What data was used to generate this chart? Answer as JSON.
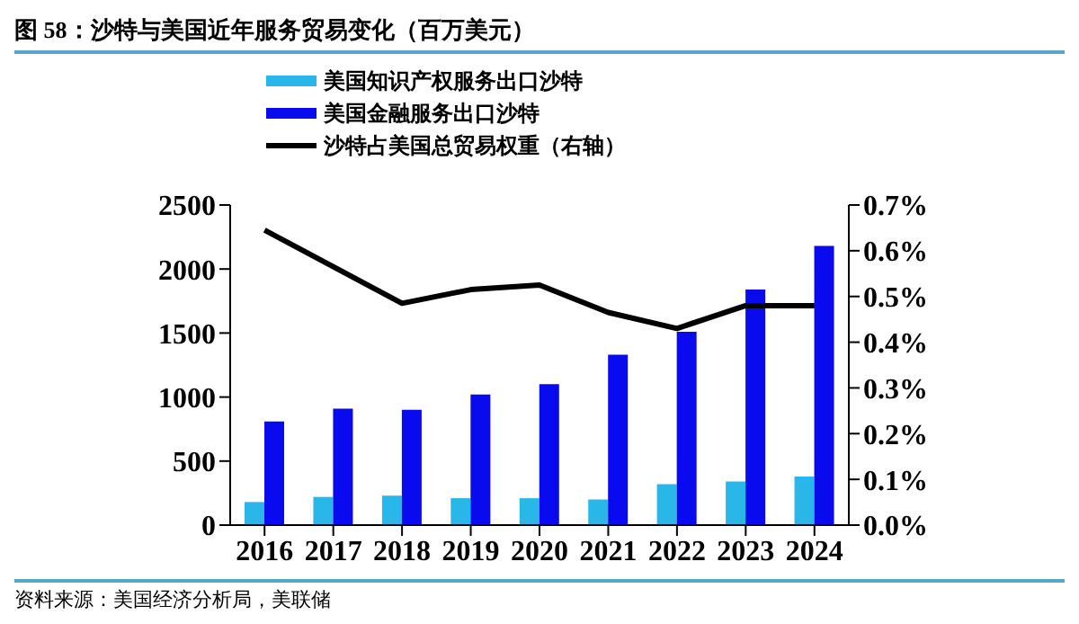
{
  "chart_data": {
    "type": "bar",
    "title": "图 58：沙特与美国近年服务贸易变化（百万美元）",
    "annotations": [
      "资料来源：美国经济分析局，美联储"
    ],
    "categories": [
      "2016",
      "2017",
      "2018",
      "2019",
      "2020",
      "2021",
      "2022",
      "2023",
      "2024"
    ],
    "series": [
      {
        "name": "美国知识产权服务出口沙特",
        "color": "#29b6e8",
        "values": [
          180,
          220,
          230,
          210,
          210,
          200,
          320,
          340,
          380
        ]
      },
      {
        "name": "美国金融服务出口沙特",
        "color": "#0a0aee",
        "values": [
          810,
          910,
          900,
          1020,
          1100,
          1330,
          1510,
          1840,
          2180
        ]
      },
      {
        "name": "沙特占美国总贸易权重（右轴）",
        "type": "line",
        "axis": "y2",
        "color": "#000000",
        "values": [
          0.645,
          0.565,
          0.485,
          0.515,
          0.525,
          0.465,
          0.43,
          0.48,
          0.48
        ]
      }
    ],
    "ylim": [
      0,
      2500
    ],
    "yticks": [
      0,
      500,
      1000,
      1500,
      2000,
      2500
    ],
    "y2lim": [
      0,
      0.7
    ],
    "y2ticks": [
      {
        "value": 0,
        "label": "0.0%"
      },
      {
        "value": 0.1,
        "label": "0.1%"
      },
      {
        "value": 0.2,
        "label": "0.2%"
      },
      {
        "value": 0.3,
        "label": "0.3%"
      },
      {
        "value": 0.4,
        "label": "0.4%"
      },
      {
        "value": 0.5,
        "label": "0.5%"
      },
      {
        "value": 0.6,
        "label": "0.6%"
      },
      {
        "value": 0.7,
        "label": "0.7%"
      }
    ],
    "grid": false,
    "legend": "top",
    "marker": "none",
    "line_style": "solid"
  }
}
